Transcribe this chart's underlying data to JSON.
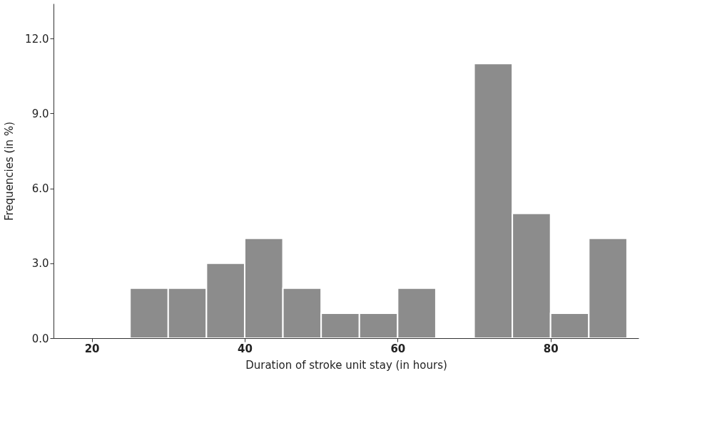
{
  "chart_data": {
    "type": "histogram",
    "xlabel": "Duration of stroke unit stay (in hours)",
    "ylabel": "Frequencies (in %)",
    "bins": [
      25,
      30,
      35,
      40,
      45,
      50,
      55,
      60,
      65,
      70,
      75,
      80,
      85,
      90
    ],
    "values": [
      2,
      2,
      3,
      4,
      2,
      1,
      1,
      2,
      0,
      11,
      5,
      1,
      4
    ],
    "color": "#8c8c8c",
    "xlim": [
      15,
      91.5
    ],
    "xticks": [
      20,
      40,
      60,
      80
    ],
    "ylim": [
      0,
      13.4
    ],
    "yticks": [
      {
        "value": 0,
        "label": "0.0"
      },
      {
        "value": 3,
        "label": "3.0"
      },
      {
        "value": 6,
        "label": "6.0"
      },
      {
        "value": 9,
        "label": "9.0"
      },
      {
        "value": 12,
        "label": "12.0"
      }
    ],
    "grid": false
  }
}
